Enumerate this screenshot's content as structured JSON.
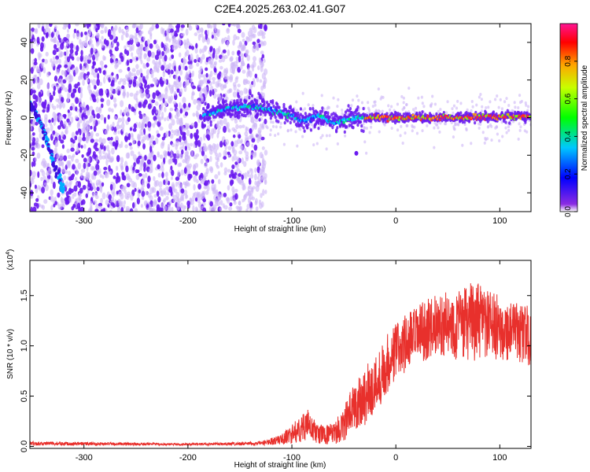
{
  "title": "C2E4.2025.263.02.41.G07",
  "colors": {
    "spectrogram_dot": "#6a1af0",
    "spectrogram_light": "#cdb6f7",
    "snr_line": "#e8302c",
    "axis": "#000000"
  },
  "chart_data": [
    {
      "type": "heatmap",
      "title": "C2E4.2025.263.02.41.G07",
      "xlabel": "Height of straight line (km)",
      "ylabel": "Frequency (Hz)",
      "xlim": [
        -352,
        130
      ],
      "ylim": [
        -50,
        50
      ],
      "x_ticks": [
        -300,
        -200,
        -100,
        0,
        100
      ],
      "x_tick_labels": [
        "-300",
        "-200",
        "-100",
        "0",
        "100"
      ],
      "y_ticks": [
        -40,
        -20,
        0,
        20,
        40
      ],
      "y_tick_labels": [
        "-40",
        "-20",
        "0",
        "20",
        "40"
      ],
      "signal_trace": [
        {
          "x": -185,
          "y": 1
        },
        {
          "x": -160,
          "y": 5
        },
        {
          "x": -140,
          "y": 6
        },
        {
          "x": -120,
          "y": 4
        },
        {
          "x": -100,
          "y": 1
        },
        {
          "x": -90,
          "y": -2
        },
        {
          "x": -75,
          "y": 1
        },
        {
          "x": -60,
          "y": -3
        },
        {
          "x": -45,
          "y": -1
        },
        {
          "x": -30,
          "y": 0
        },
        {
          "x": 0,
          "y": 0
        },
        {
          "x": 50,
          "y": 0
        },
        {
          "x": 130,
          "y": 1
        }
      ],
      "diagonal_trace": [
        {
          "x": -352,
          "y": 8
        },
        {
          "x": -340,
          "y": -5
        },
        {
          "x": -330,
          "y": -22
        },
        {
          "x": -320,
          "y": -40
        }
      ],
      "noise_region_x": [
        -352,
        -125
      ],
      "colorbar": {
        "label": "Normalized spectral amplitude",
        "range": [
          0.0,
          1.0
        ],
        "ticks": [
          0.0,
          0.2,
          0.4,
          0.6,
          0.8
        ],
        "tick_labels": [
          "0.0",
          "0.2",
          "0.4",
          "0.6",
          "0.8"
        ]
      }
    },
    {
      "type": "line",
      "xlabel": "Height of straight line (km)",
      "ylabel": "SNR (10 * v/v)",
      "multiplier_label": "(x10",
      "multiplier_exp": "4",
      "xlim": [
        -352,
        130
      ],
      "ylim": [
        -0.02,
        1.85
      ],
      "x_ticks": [
        -300,
        -200,
        -100,
        0,
        100
      ],
      "x_tick_labels": [
        "-300",
        "-200",
        "-100",
        "0",
        "100"
      ],
      "y_ticks": [
        0.0,
        0.5,
        1.0,
        1.5
      ],
      "y_tick_labels": [
        "0.0",
        "0.5",
        "1.0",
        "1.5"
      ],
      "envelope": [
        {
          "x": -352,
          "mean": 0.03,
          "amp": 0.02
        },
        {
          "x": -200,
          "mean": 0.02,
          "amp": 0.01
        },
        {
          "x": -130,
          "mean": 0.03,
          "amp": 0.02
        },
        {
          "x": -110,
          "mean": 0.07,
          "amp": 0.05
        },
        {
          "x": -95,
          "mean": 0.15,
          "amp": 0.12
        },
        {
          "x": -85,
          "mean": 0.22,
          "amp": 0.15
        },
        {
          "x": -75,
          "mean": 0.12,
          "amp": 0.1
        },
        {
          "x": -60,
          "mean": 0.12,
          "amp": 0.1
        },
        {
          "x": -50,
          "mean": 0.22,
          "amp": 0.18
        },
        {
          "x": -40,
          "mean": 0.4,
          "amp": 0.25
        },
        {
          "x": -30,
          "mean": 0.5,
          "amp": 0.3
        },
        {
          "x": -20,
          "mean": 0.6,
          "amp": 0.3
        },
        {
          "x": -10,
          "mean": 0.8,
          "amp": 0.3
        },
        {
          "x": 0,
          "mean": 0.95,
          "amp": 0.3
        },
        {
          "x": 20,
          "mean": 1.1,
          "amp": 0.3
        },
        {
          "x": 40,
          "mean": 1.22,
          "amp": 0.3
        },
        {
          "x": 60,
          "mean": 1.2,
          "amp": 0.35
        },
        {
          "x": 75,
          "mean": 1.25,
          "amp": 0.4
        },
        {
          "x": 90,
          "mean": 1.2,
          "amp": 0.35
        },
        {
          "x": 110,
          "mean": 1.15,
          "amp": 0.3
        },
        {
          "x": 130,
          "mean": 1.1,
          "amp": 0.3
        }
      ]
    }
  ]
}
